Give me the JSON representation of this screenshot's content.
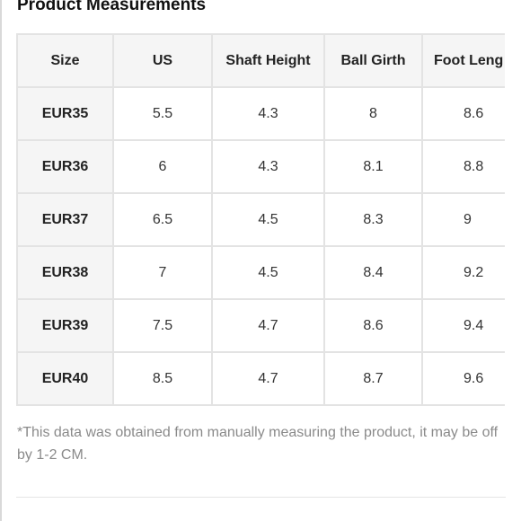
{
  "title": "Product Measurements",
  "table": {
    "headers": [
      "Size",
      "US",
      "Shaft Height",
      "Ball Girth",
      "Foot Leng"
    ],
    "rows": [
      [
        "EUR35",
        "5.5",
        "4.3",
        "8",
        "8.6"
      ],
      [
        "EUR36",
        "6",
        "4.3",
        "8.1",
        "8.8"
      ],
      [
        "EUR37",
        "6.5",
        "4.5",
        "8.3",
        "9"
      ],
      [
        "EUR38",
        "7",
        "4.5",
        "8.4",
        "9.2"
      ],
      [
        "EUR39",
        "7.5",
        "4.7",
        "8.6",
        "9.4"
      ],
      [
        "EUR40",
        "8.5",
        "4.7",
        "8.7",
        "9.6"
      ]
    ]
  },
  "note": "*This data was obtained from manually measuring the product, it may be off by 1-2 CM.",
  "colors": {
    "header_bg": "#f5f5f5",
    "border": "#e3e3e3",
    "note_text": "#8a8a8a"
  }
}
